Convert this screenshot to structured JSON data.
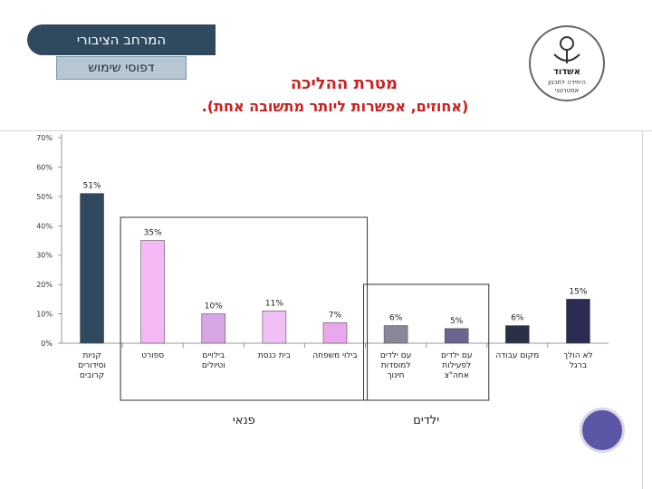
{
  "header": {
    "tab_primary": "המרחב הציבורי",
    "tab_secondary": "דפוסי שימוש",
    "logo_text_top": "אשדוד",
    "logo_text_mid": "היחידה לתכנון",
    "logo_text_bottom": "אסטרטגי"
  },
  "chart_data": {
    "type": "bar",
    "title": "מטרת ההליכה",
    "subtitle": ".(אחוזים, אפשרות ליותר מתשובה אחת)",
    "categories": [
      "קניות וסידורים קרובים",
      "ספורט",
      "בילויים וטיולים",
      "בית כנסת",
      "בילוי משפחה",
      "עם ילדים למוסדות חינוך",
      "עם ילדים לפעילות אחה\"צ",
      "מקום עבודה",
      "לא הולך ברגל"
    ],
    "values": [
      51,
      35,
      10,
      11,
      7,
      6,
      5,
      6,
      15
    ],
    "value_labels": [
      "51%",
      "35%",
      "10%",
      "11%",
      "7%",
      "6%",
      "5%",
      "6%",
      "15%"
    ],
    "bar_colors": [
      "#2f4a5e",
      "#f4b8f4",
      "#d8a6e6",
      "#f0c0f5",
      "#e9a8ec",
      "#8a869a",
      "#6a6690",
      "#2a3045",
      "#2c2c52"
    ],
    "y_ticks": [
      "0%",
      "10%",
      "20%",
      "30%",
      "40%",
      "50%",
      "60%",
      "70%"
    ],
    "ylim": [
      0,
      70
    ],
    "grid": false,
    "groups": [
      {
        "label": "פנאי",
        "from": 1,
        "to": 4
      },
      {
        "label": "ילדים",
        "from": 5,
        "to": 6
      }
    ]
  }
}
